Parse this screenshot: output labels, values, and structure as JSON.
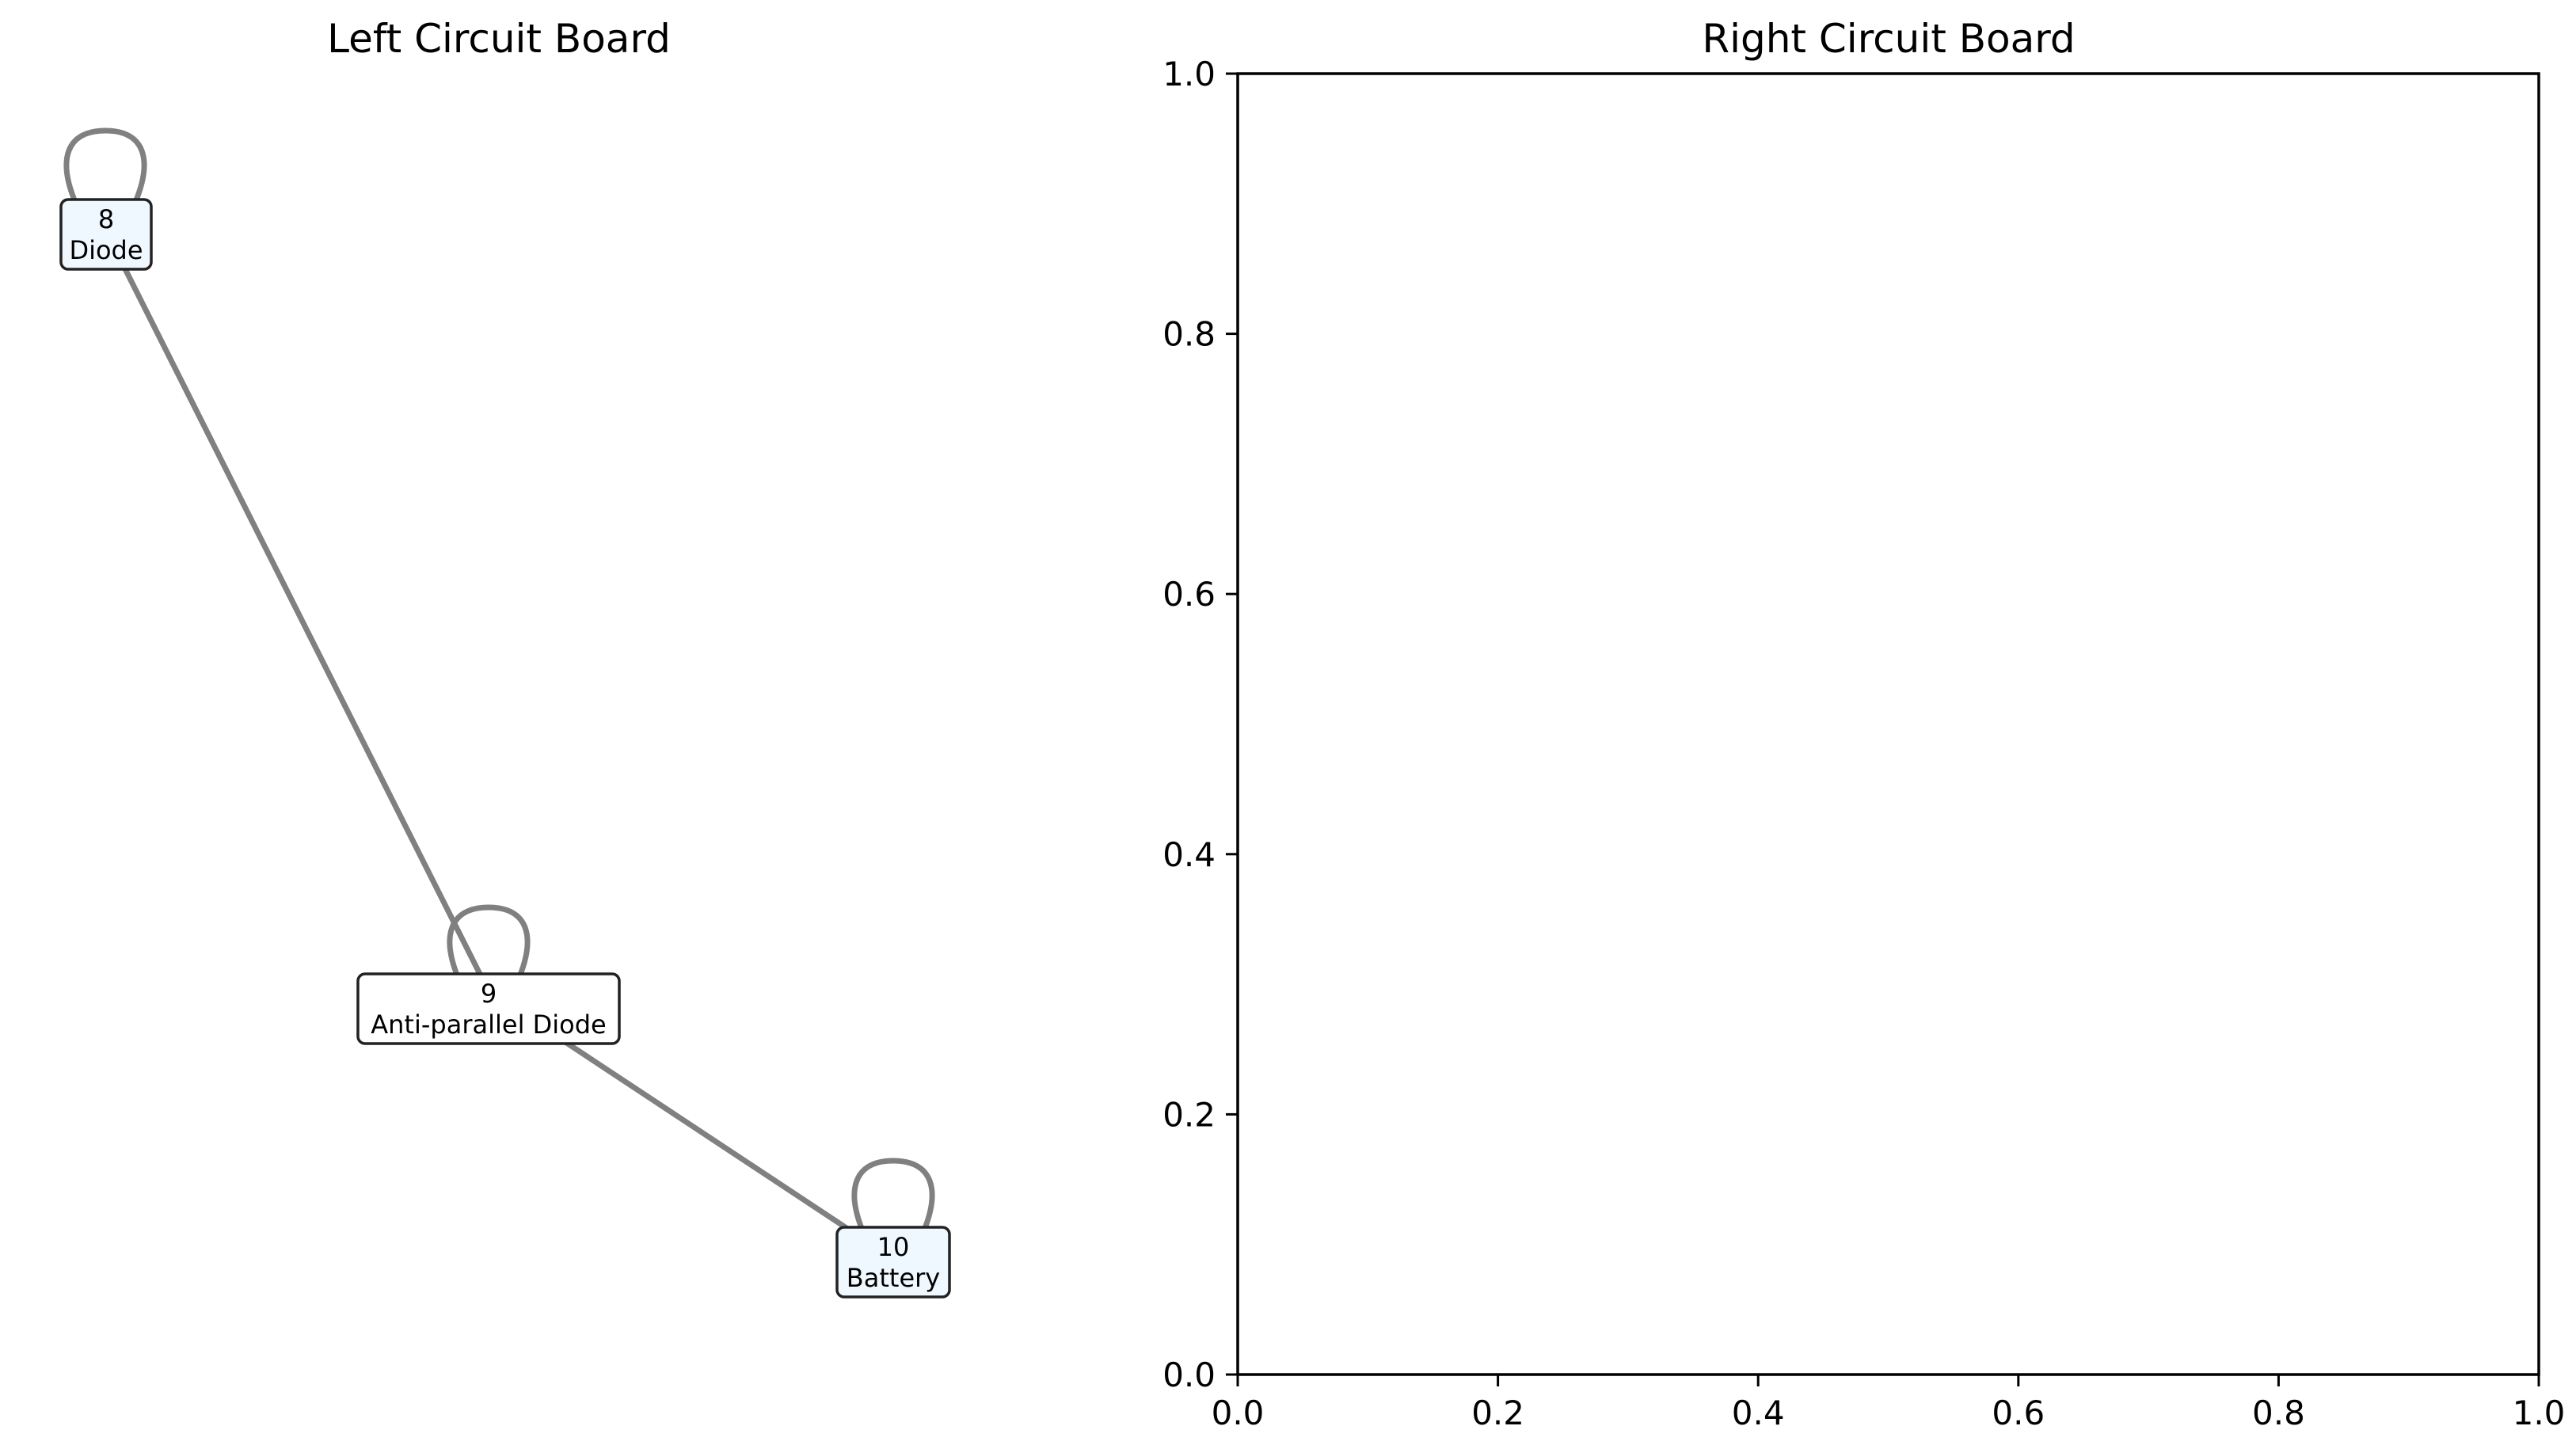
{
  "left_panel": {
    "title": "Left Circuit Board",
    "nodes": [
      {
        "id": "8",
        "label": "Diode"
      },
      {
        "id": "9",
        "label": "Anti-parallel Diode"
      },
      {
        "id": "10",
        "label": "Battery"
      }
    ],
    "edges": [
      {
        "from": "8",
        "to": "9"
      },
      {
        "from": "9",
        "to": "10"
      }
    ],
    "self_loops": [
      "8",
      "9",
      "10"
    ],
    "colors": {
      "edge": "#808080",
      "node_fill": "#f0f8ff",
      "node_border": "#222222"
    }
  },
  "right_panel": {
    "title": "Right Circuit Board",
    "x_ticks": [
      "0.0",
      "0.2",
      "0.4",
      "0.6",
      "0.8",
      "1.0"
    ],
    "y_ticks": [
      "0.0",
      "0.2",
      "0.4",
      "0.6",
      "0.8",
      "1.0"
    ],
    "xlim": [
      0,
      1
    ],
    "ylim": [
      0,
      1
    ],
    "empty": true
  }
}
